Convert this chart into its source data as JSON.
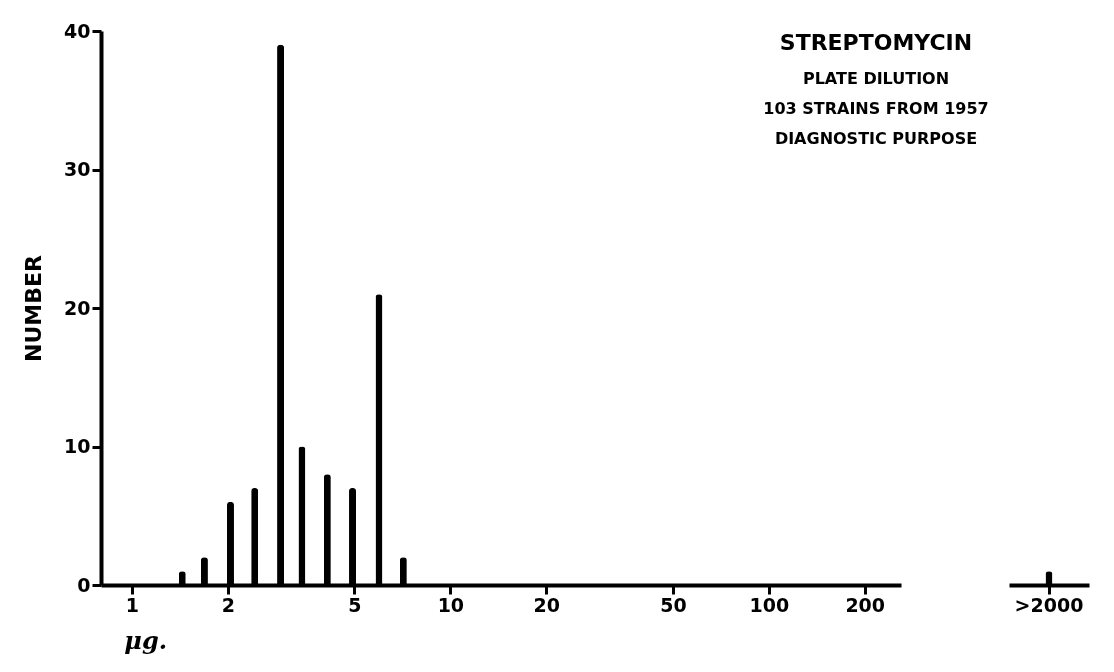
{
  "chart_data": [
    {
      "type": "bar",
      "title": "STREPTOMYCIN",
      "annotations": [
        "PLATE DILUTION",
        "103 STRAINS FROM 1957",
        "DIAGNOSTIC PURPOSE"
      ],
      "xlabel": "μg.",
      "ylabel": "NUMBER",
      "x": [
        1.44,
        1.69,
        2.04,
        2.43,
        2.93,
        3.42,
        4.11,
        4.93,
        5.97,
        7.12
      ],
      "values": [
        1,
        2,
        6,
        7,
        39,
        10,
        8,
        7,
        21,
        2
      ],
      "color": "#000000",
      "log": "x",
      "xlim": [
        0.8,
        260
      ],
      "xticks": [
        1,
        2,
        5,
        10,
        20,
        50,
        100,
        200
      ],
      "ylim": [
        0,
        40
      ],
      "yticks": [
        0,
        10,
        20,
        30,
        40
      ],
      "grid": false
    },
    {
      "type": "bar",
      "categories": [
        ">2000"
      ],
      "values": [
        1
      ],
      "color": "#000000",
      "ylim": [
        0,
        40
      ],
      "yticks": [
        0,
        10,
        20,
        30,
        40
      ],
      "tick_labels": "x",
      "grid": false
    }
  ]
}
